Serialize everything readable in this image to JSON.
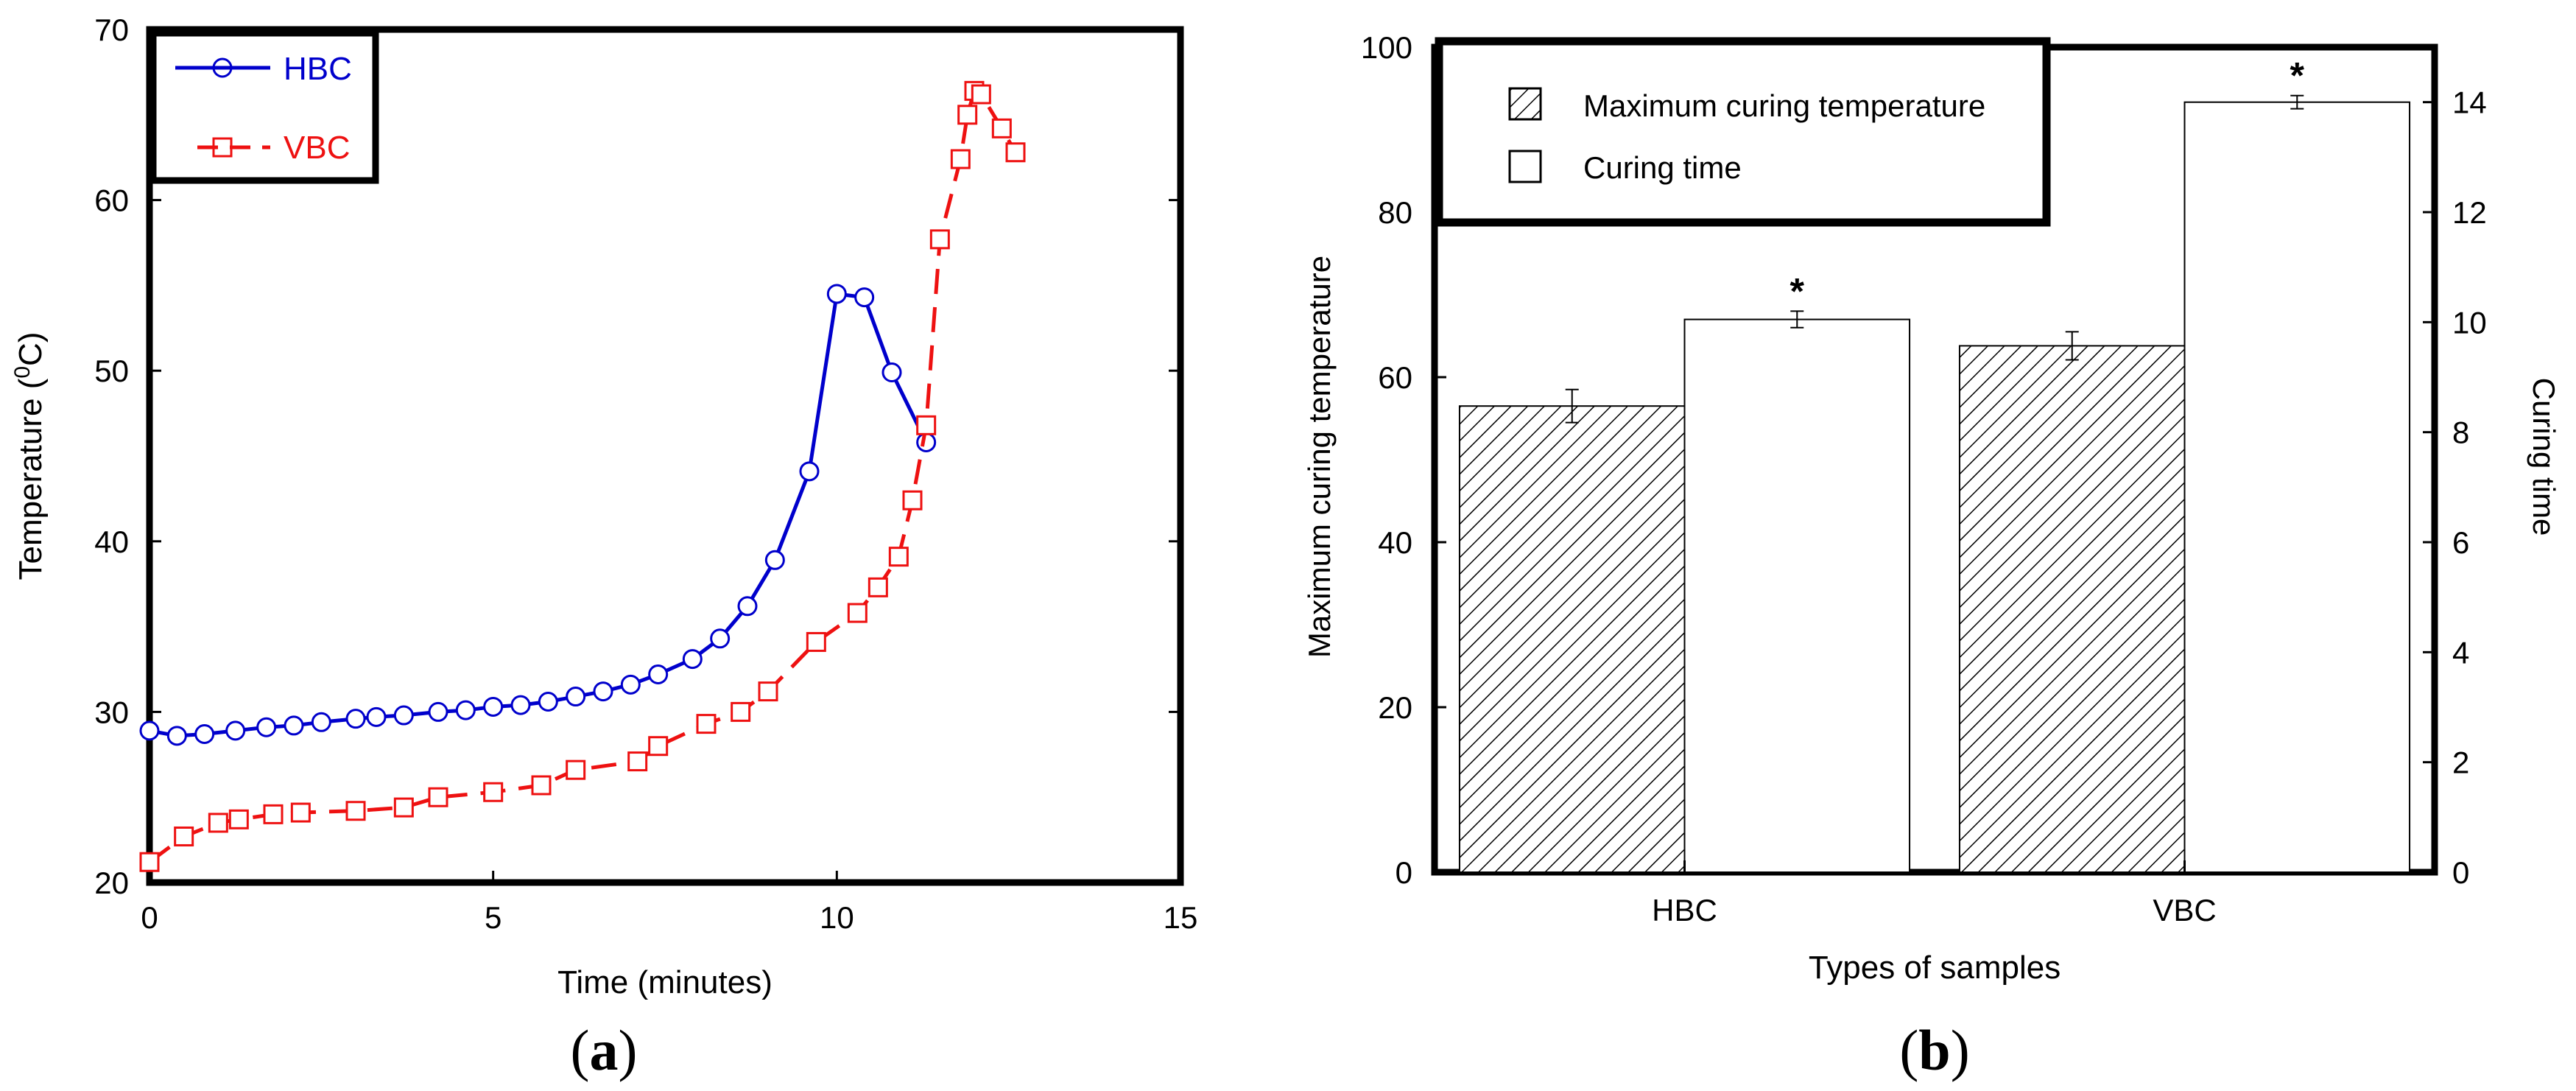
{
  "chart_data": [
    {
      "type": "line",
      "panel_label": "a",
      "xlabel": "Time (minutes)",
      "ylabel_prefix": "Temperature (",
      "ylabel_sup": "0",
      "ylabel_suffix": "C)",
      "xlim": [
        0,
        15
      ],
      "ylim": [
        20,
        70
      ],
      "xticks": [
        0,
        5,
        10,
        15
      ],
      "yticks": [
        20,
        30,
        40,
        50,
        60,
        70
      ],
      "legend_position": "top-left",
      "series": [
        {
          "name": "HBC",
          "color": "#0000cc",
          "marker": "circle",
          "linestyle": "solid",
          "x": [
            0,
            0.4,
            0.8,
            1.25,
            1.7,
            2.1,
            2.5,
            3.0,
            3.3,
            3.7,
            4.2,
            4.6,
            5.0,
            5.4,
            5.8,
            6.2,
            6.6,
            7.0,
            7.4,
            7.9,
            8.3,
            8.7,
            9.1,
            9.6,
            10.0,
            10.4,
            10.8,
            11.3
          ],
          "y": [
            28.9,
            28.6,
            28.7,
            28.9,
            29.1,
            29.2,
            29.4,
            29.6,
            29.7,
            29.8,
            30.0,
            30.1,
            30.3,
            30.4,
            30.6,
            30.9,
            31.2,
            31.6,
            32.2,
            33.1,
            34.3,
            36.2,
            38.9,
            44.1,
            54.5,
            54.3,
            49.9,
            45.8
          ]
        },
        {
          "name": "VBC",
          "color": "#ee1111",
          "marker": "square",
          "linestyle": "dashed",
          "x": [
            0,
            0.5,
            1.0,
            1.3,
            1.8,
            2.2,
            3.0,
            3.7,
            4.2,
            5.0,
            5.7,
            6.2,
            7.1,
            7.4,
            8.1,
            8.6,
            9.0,
            9.7,
            10.3,
            10.6,
            10.9,
            11.1,
            11.3,
            11.5,
            11.8,
            11.9,
            12.0,
            12.1,
            12.4,
            12.6
          ],
          "y": [
            21.2,
            22.7,
            23.5,
            23.7,
            24.0,
            24.1,
            24.2,
            24.4,
            25.0,
            25.3,
            25.7,
            26.6,
            27.1,
            28.0,
            29.3,
            30.0,
            31.2,
            34.1,
            35.8,
            37.3,
            39.1,
            42.4,
            46.8,
            57.7,
            62.4,
            65.0,
            66.4,
            66.2,
            64.2,
            62.8
          ]
        }
      ]
    },
    {
      "type": "bar",
      "panel_label": "b",
      "xlabel": "Types of samples",
      "ylabel": "Maximum curing temperature",
      "y2label": "Curing time",
      "categories": [
        "HBC",
        "VBC"
      ],
      "ylim": [
        0,
        100
      ],
      "y2lim": [
        0,
        15
      ],
      "yticks": [
        0,
        20,
        40,
        60,
        80,
        100
      ],
      "y2ticks": [
        0,
        2,
        4,
        6,
        8,
        10,
        12,
        14
      ],
      "legend_position": "top-left",
      "series": [
        {
          "name": "Maximum curing temperature",
          "axis": "left",
          "pattern": "hatched",
          "values": [
            56.5,
            63.8
          ],
          "errors": [
            2.0,
            1.7
          ],
          "annotations": [
            "",
            ""
          ]
        },
        {
          "name": "Curing time",
          "axis": "right",
          "pattern": "open",
          "values": [
            10.05,
            14.0
          ],
          "errors": [
            0.15,
            0.12
          ],
          "annotations": [
            "*",
            "*"
          ]
        }
      ]
    }
  ]
}
